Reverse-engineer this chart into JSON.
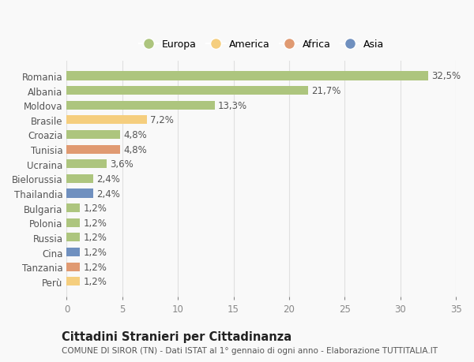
{
  "countries": [
    "Romania",
    "Albania",
    "Moldova",
    "Brasile",
    "Croazia",
    "Tunisia",
    "Ucraina",
    "Bielorussia",
    "Thailandia",
    "Bulgaria",
    "Polonia",
    "Russia",
    "Cina",
    "Tanzania",
    "Perù"
  ],
  "values": [
    32.5,
    21.7,
    13.3,
    7.2,
    4.8,
    4.8,
    3.6,
    2.4,
    2.4,
    1.2,
    1.2,
    1.2,
    1.2,
    1.2,
    1.2
  ],
  "labels": [
    "32,5%",
    "21,7%",
    "13,3%",
    "7,2%",
    "4,8%",
    "4,8%",
    "3,6%",
    "2,4%",
    "2,4%",
    "1,2%",
    "1,2%",
    "1,2%",
    "1,2%",
    "1,2%",
    "1,2%"
  ],
  "colors": [
    "#adc57e",
    "#adc57e",
    "#adc57e",
    "#f5ce7e",
    "#adc57e",
    "#e09a72",
    "#adc57e",
    "#adc57e",
    "#7090bf",
    "#adc57e",
    "#adc57e",
    "#adc57e",
    "#7090bf",
    "#e09a72",
    "#f5ce7e"
  ],
  "legend_labels": [
    "Europa",
    "America",
    "Africa",
    "Asia"
  ],
  "legend_colors": [
    "#adc57e",
    "#f5ce7e",
    "#e09a72",
    "#7090bf"
  ],
  "title": "Cittadini Stranieri per Cittadinanza",
  "subtitle": "COMUNE DI SIROR (TN) - Dati ISTAT al 1° gennaio di ogni anno - Elaborazione TUTTITALIA.IT",
  "xlim": [
    0,
    35
  ],
  "xticks": [
    0,
    5,
    10,
    15,
    20,
    25,
    30,
    35
  ],
  "background_color": "#f9f9f9",
  "grid_color": "#e0e0e0",
  "bar_height": 0.6,
  "label_fontsize": 8.5,
  "title_fontsize": 10.5,
  "subtitle_fontsize": 7.5,
  "tick_fontsize": 8.5,
  "legend_fontsize": 9
}
